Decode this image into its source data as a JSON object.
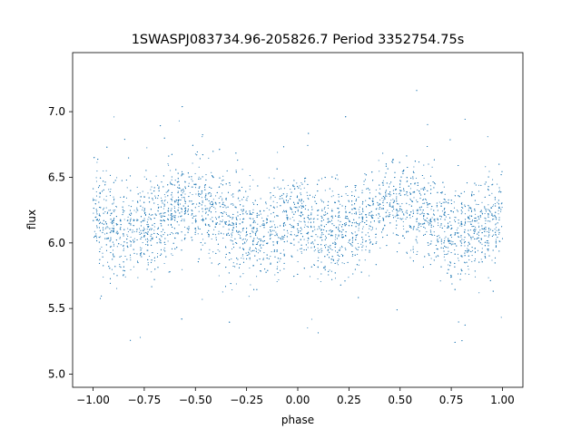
{
  "chart_data": {
    "type": "scatter",
    "title": "1SWASPJ083734.96-205826.7 Period 3352754.75s",
    "xlabel": "phase",
    "ylabel": "flux",
    "xlim": [
      -1.1,
      1.1
    ],
    "ylim": [
      4.9,
      7.45
    ],
    "xticks": [
      -1.0,
      -0.75,
      -0.5,
      -0.25,
      0.0,
      0.25,
      0.5,
      0.75,
      1.0
    ],
    "xtick_labels": [
      "−1.00",
      "−0.75",
      "−0.50",
      "−0.25",
      "0.00",
      "0.25",
      "0.50",
      "0.75",
      "1.00"
    ],
    "yticks": [
      5.0,
      5.5,
      6.0,
      6.5,
      7.0
    ],
    "ytick_labels": [
      "5.0",
      "5.5",
      "6.0",
      "6.5",
      "7.0"
    ],
    "grid": false,
    "marker_color": "#1f77b4",
    "series": [
      {
        "x_range": [
          -1.0,
          1.0
        ],
        "folded_period": 1.0,
        "trend_points": [
          [
            0.0,
            6.2
          ],
          [
            0.05,
            6.18
          ],
          [
            0.1,
            6.1
          ],
          [
            0.15,
            6.06
          ],
          [
            0.2,
            6.08
          ],
          [
            0.25,
            6.12
          ],
          [
            0.3,
            6.15
          ],
          [
            0.35,
            6.2
          ],
          [
            0.4,
            6.27
          ],
          [
            0.45,
            6.3
          ],
          [
            0.5,
            6.3
          ],
          [
            0.55,
            6.27
          ],
          [
            0.6,
            6.22
          ],
          [
            0.65,
            6.18
          ],
          [
            0.7,
            6.12
          ],
          [
            0.75,
            6.07
          ],
          [
            0.8,
            6.05
          ],
          [
            0.85,
            6.08
          ],
          [
            0.9,
            6.14
          ],
          [
            0.95,
            6.19
          ],
          [
            1.0,
            6.2
          ]
        ],
        "scatter_sd": 0.17,
        "y_extent": [
          5.0,
          7.35
        ]
      }
    ]
  }
}
